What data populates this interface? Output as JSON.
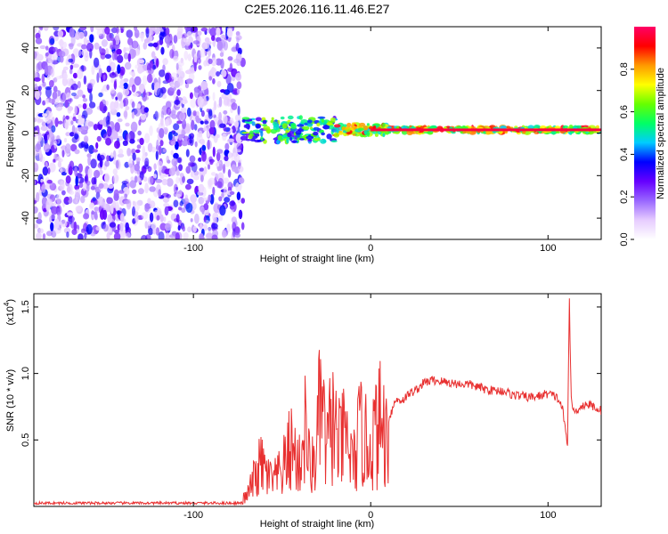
{
  "title": "C2E5.2026.116.11.46.E27",
  "chart_data": [
    {
      "type": "heatmap",
      "xlabel": "Height of straight line (km)",
      "ylabel": "Frequency (Hz)",
      "xlim": [
        -190,
        130
      ],
      "ylim": [
        -50,
        50
      ],
      "x_ticks": [
        -100,
        0,
        100
      ],
      "x_tick_labels": [
        "-100",
        "0",
        "100"
      ],
      "y_ticks": [
        -40,
        -20,
        0,
        20,
        40
      ],
      "y_tick_labels": [
        "-40",
        "-20",
        "0",
        "20",
        "40"
      ],
      "noise_region_x": [
        -190,
        -72
      ],
      "signal_region_x": [
        -72,
        130
      ],
      "signal_frequency_hz": 1.5,
      "colorbar": {
        "label": "Normalized spectral amplitude",
        "range": [
          0,
          1
        ],
        "ticks": [
          0.0,
          0.2,
          0.4,
          0.6,
          0.8
        ],
        "tick_labels": [
          "0.0",
          "0.2",
          "0.4",
          "0.6",
          "0.8"
        ],
        "colors": [
          "#ffffff",
          "#e6ccff",
          "#9966ff",
          "#6600ff",
          "#0000ff",
          "#00ccff",
          "#00ff66",
          "#66ff00",
          "#ffff00",
          "#ff9900",
          "#ff0000",
          "#ff0066"
        ]
      }
    },
    {
      "type": "line",
      "xlabel": "Height of straight line (km)",
      "ylabel": "SNR (10 * v/v)",
      "scale_label": "(x10",
      "scale_exp": "4",
      "scale_close": ")",
      "xlim": [
        -190,
        130
      ],
      "ylim": [
        0,
        1.6
      ],
      "x_ticks": [
        -100,
        0,
        100
      ],
      "x_tick_labels": [
        "-100",
        "0",
        "100"
      ],
      "y_ticks": [
        0.5,
        1.0,
        1.5
      ],
      "y_tick_labels": [
        "0.5",
        "1.0",
        "1.5"
      ],
      "line_color": "#e83030",
      "series": [
        {
          "x": [
            -190,
            -170,
            -150,
            -130,
            -110,
            -90,
            -75,
            -70,
            -65,
            -62,
            -58,
            -55,
            -50,
            -45,
            -40,
            -37,
            -34,
            -31,
            -28,
            -25,
            -22,
            -18,
            -14,
            -10,
            -6,
            -2,
            2,
            6,
            10,
            14,
            18,
            22,
            26,
            30,
            35,
            40,
            45,
            50,
            55,
            60,
            65,
            70,
            75,
            80,
            85,
            90,
            95,
            100,
            105,
            108,
            111,
            112,
            113,
            115,
            118,
            122,
            126,
            130
          ],
          "y": [
            0.02,
            0.02,
            0.02,
            0.02,
            0.02,
            0.02,
            0.03,
            0.1,
            0.3,
            0.42,
            0.3,
            0.25,
            0.35,
            0.6,
            0.4,
            0.8,
            0.35,
            0.5,
            1.1,
            0.5,
            0.9,
            0.6,
            0.7,
            0.4,
            0.75,
            0.6,
            0.7,
            0.85,
            0.65,
            0.8,
            0.8,
            0.85,
            0.88,
            0.93,
            0.95,
            0.94,
            0.93,
            0.92,
            0.92,
            0.9,
            0.88,
            0.87,
            0.87,
            0.84,
            0.83,
            0.82,
            0.83,
            0.85,
            0.82,
            0.75,
            0.45,
            1.6,
            0.8,
            0.7,
            0.75,
            0.77,
            0.75,
            0.72
          ]
        }
      ]
    }
  ]
}
